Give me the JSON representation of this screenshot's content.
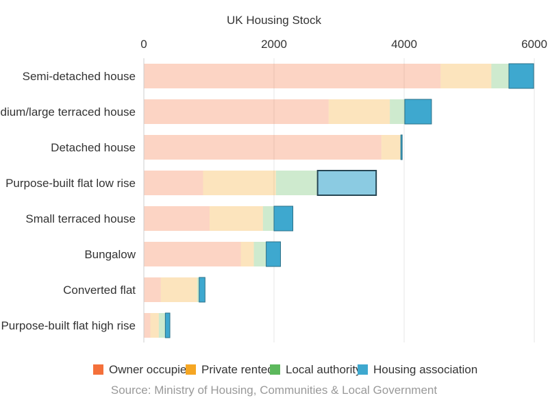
{
  "chart_data": {
    "type": "bar",
    "orientation": "horizontal",
    "stacked": true,
    "title": "UK Housing Stock",
    "source": "Source: Ministry of Housing, Communities & Local Government",
    "categories": [
      "Semi-detached house",
      "Medium/large terraced house",
      "Detached house",
      "Purpose-built flat low rise",
      "Small terraced house",
      "Bungalow",
      "Converted flat",
      "Purpose-built flat high rise"
    ],
    "series": [
      {
        "name": "Owner occupied",
        "color": "#f4703a",
        "values": [
          4560,
          2840,
          3650,
          910,
          1010,
          1490,
          260,
          100
        ]
      },
      {
        "name": "Private rented",
        "color": "#f5a623",
        "values": [
          780,
          940,
          290,
          1120,
          820,
          200,
          560,
          130
        ]
      },
      {
        "name": "Local authority",
        "color": "#5cb85c",
        "values": [
          270,
          230,
          10,
          640,
          170,
          190,
          30,
          100
        ]
      },
      {
        "name": "Housing association",
        "color": "#3ea8cf",
        "values": [
          380,
          410,
          20,
          900,
          290,
          220,
          90,
          70
        ]
      }
    ],
    "highlighted_bar": {
      "category": "Purpose-built flat low rise",
      "series": "Housing association"
    },
    "xaxis": {
      "position": "top",
      "ticks": [
        0,
        2000,
        4000,
        6000
      ],
      "range": [
        0,
        6000
      ]
    },
    "grid": true,
    "legend_position": "bottom"
  }
}
